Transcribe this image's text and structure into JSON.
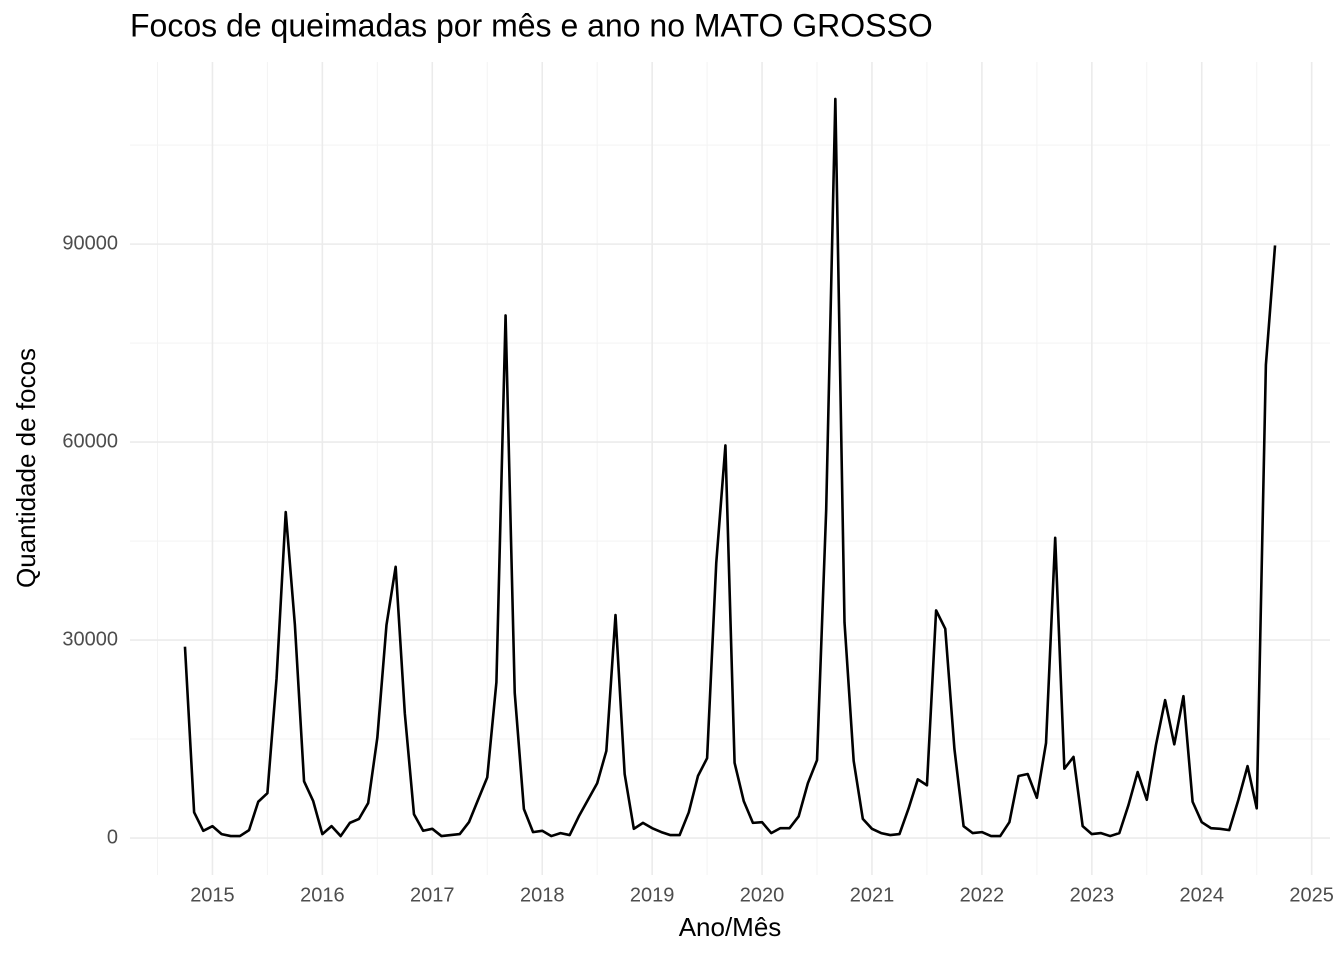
{
  "chart_data": {
    "type": "line",
    "title": "Focos de queimadas por mês e ano no MATO GROSSO",
    "x_label": "Ano/Mês",
    "y_label": "Quantidade de focos",
    "color": "#000000",
    "grid": true,
    "x": [
      "2014-10",
      "2014-11",
      "2014-12",
      "2015-01",
      "2015-02",
      "2015-03",
      "2015-04",
      "2015-05",
      "2015-06",
      "2015-07",
      "2015-08",
      "2015-09",
      "2015-10",
      "2015-11",
      "2015-12",
      "2016-01",
      "2016-02",
      "2016-03",
      "2016-04",
      "2016-05",
      "2016-06",
      "2016-07",
      "2016-08",
      "2016-09",
      "2016-10",
      "2016-11",
      "2016-12",
      "2017-01",
      "2017-02",
      "2017-03",
      "2017-04",
      "2017-05",
      "2017-06",
      "2017-07",
      "2017-08",
      "2017-09",
      "2017-10",
      "2017-11",
      "2017-12",
      "2018-01",
      "2018-02",
      "2018-03",
      "2018-04",
      "2018-05",
      "2018-06",
      "2018-07",
      "2018-08",
      "2018-09",
      "2018-10",
      "2018-11",
      "2018-12",
      "2019-01",
      "2019-02",
      "2019-03",
      "2019-04",
      "2019-05",
      "2019-06",
      "2019-07",
      "2019-08",
      "2019-09",
      "2019-10",
      "2019-11",
      "2019-12",
      "2020-01",
      "2020-02",
      "2020-03",
      "2020-04",
      "2020-05",
      "2020-06",
      "2020-07",
      "2020-08",
      "2020-09",
      "2020-10",
      "2020-11",
      "2020-12",
      "2021-01",
      "2021-02",
      "2021-03",
      "2021-04",
      "2021-05",
      "2021-06",
      "2021-07",
      "2021-08",
      "2021-09",
      "2021-10",
      "2021-11",
      "2021-12",
      "2022-01",
      "2022-02",
      "2022-03",
      "2022-04",
      "2022-05",
      "2022-06",
      "2022-07",
      "2022-08",
      "2022-09",
      "2022-10",
      "2022-11",
      "2022-12",
      "2023-01",
      "2023-02",
      "2023-03",
      "2023-04",
      "2023-05",
      "2023-06",
      "2023-07",
      "2023-08",
      "2023-09",
      "2023-10",
      "2023-11",
      "2023-12",
      "2024-01",
      "2024-02",
      "2024-03",
      "2024-04",
      "2024-05",
      "2024-06",
      "2024-07",
      "2024-08",
      "2024-09"
    ],
    "values": [
      29000,
      3900,
      1100,
      1800,
      600,
      300,
      300,
      1200,
      5500,
      6800,
      24200,
      49400,
      32300,
      8600,
      5600,
      600,
      1800,
      300,
      2300,
      2900,
      5300,
      15200,
      32300,
      41100,
      18900,
      3600,
      1100,
      1400,
      300,
      450,
      600,
      2400,
      5800,
      9200,
      23600,
      79200,
      22000,
      4400,
      900,
      1100,
      300,
      750,
      450,
      3300,
      5800,
      8300,
      13200,
      33800,
      9700,
      1400,
      2300,
      1500,
      900,
      450,
      450,
      3900,
      9400,
      12100,
      41700,
      59500,
      11400,
      5600,
      2300,
      2400,
      750,
      1500,
      1500,
      3300,
      8300,
      11800,
      49700,
      112000,
      32700,
      11700,
      2900,
      1400,
      750,
      450,
      600,
      4500,
      8900,
      8000,
      34500,
      31700,
      13500,
      1800,
      750,
      900,
      300,
      300,
      2400,
      9400,
      9700,
      6100,
      14400,
      45500,
      10500,
      12300,
      1800,
      600,
      750,
      300,
      750,
      5000,
      10000,
      5800,
      14100,
      20900,
      14200,
      21500,
      5500,
      2400,
      1500,
      1400,
      1200,
      5800,
      10900,
      4500,
      71700,
      89800
    ],
    "xlim": [
      "2014-04",
      "2025-03"
    ],
    "xticks": [
      "2015",
      "2016",
      "2017",
      "2018",
      "2019",
      "2020",
      "2021",
      "2022",
      "2023",
      "2024",
      "2025"
    ],
    "ylim": [
      -5600,
      117600
    ],
    "yticks": [
      0,
      30000,
      60000,
      90000
    ]
  }
}
